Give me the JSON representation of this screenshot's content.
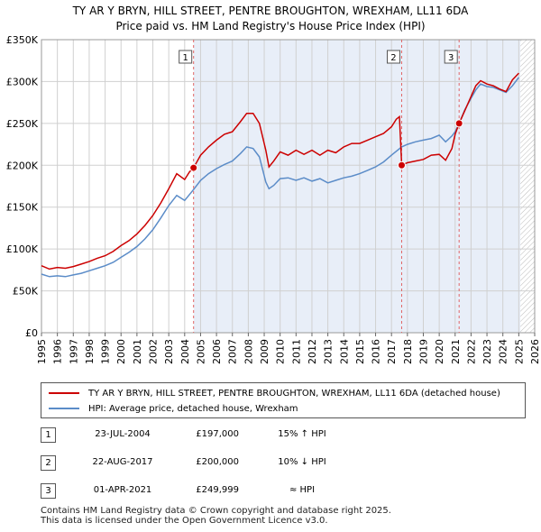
{
  "chart_data": {
    "type": "line",
    "title": "TY AR Y BRYN, HILL STREET, PENTRE BROUGHTON, WREXHAM, LL11 6DA",
    "subtitle": "Price paid vs. HM Land Registry's House Price Index (HPI)",
    "xlim": [
      1995,
      2026
    ],
    "ylim": [
      0,
      350000
    ],
    "xticks": [
      1995,
      1996,
      1997,
      1998,
      1999,
      2000,
      2001,
      2002,
      2003,
      2004,
      2005,
      2006,
      2007,
      2008,
      2009,
      2010,
      2011,
      2012,
      2013,
      2014,
      2015,
      2016,
      2017,
      2018,
      2019,
      2020,
      2021,
      2022,
      2023,
      2024,
      2025,
      2026
    ],
    "yticks": [
      {
        "value": 0,
        "label": "£0"
      },
      {
        "value": 50000,
        "label": "£50K"
      },
      {
        "value": 100000,
        "label": "£100K"
      },
      {
        "value": 150000,
        "label": "£150K"
      },
      {
        "value": 200000,
        "label": "£200K"
      },
      {
        "value": 250000,
        "label": "£250K"
      },
      {
        "value": 300000,
        "label": "£300K"
      },
      {
        "value": 350000,
        "label": "£350K"
      }
    ],
    "shaded_region": [
      2004.56,
      2025.1
    ],
    "hatched_region": [
      2025.1,
      2026
    ],
    "series": [
      {
        "name": "TY AR Y BRYN, HILL STREET, PENTRE BROUGHTON, WREXHAM, LL11 6DA (detached house)",
        "color": "#cc0000",
        "x": [
          1995.0,
          1995.5,
          1996.0,
          1996.5,
          1997.0,
          1997.5,
          1998.0,
          1998.5,
          1999.0,
          1999.5,
          2000.0,
          2000.5,
          2001.0,
          2001.5,
          2002.0,
          2002.5,
          2003.0,
          2003.5,
          2004.0,
          2004.3,
          2004.56,
          2005.0,
          2005.5,
          2006.0,
          2006.5,
          2007.0,
          2007.5,
          2007.9,
          2008.3,
          2008.7,
          2009.1,
          2009.3,
          2009.6,
          2010.0,
          2010.5,
          2011.0,
          2011.5,
          2012.0,
          2012.5,
          2013.0,
          2013.5,
          2014.0,
          2014.5,
          2015.0,
          2015.5,
          2016.0,
          2016.5,
          2017.0,
          2017.3,
          2017.5,
          2017.64,
          2018.0,
          2018.5,
          2019.0,
          2019.5,
          2020.0,
          2020.4,
          2020.8,
          2021.0,
          2021.25,
          2021.6,
          2022.0,
          2022.3,
          2022.6,
          2023.0,
          2023.4,
          2023.8,
          2024.2,
          2024.6,
          2025.0
        ],
        "y": [
          80000,
          76000,
          78000,
          77000,
          79000,
          82000,
          85000,
          89000,
          92000,
          97000,
          104000,
          110000,
          118000,
          128000,
          140000,
          155000,
          172000,
          190000,
          183000,
          192000,
          197000,
          212000,
          222000,
          230000,
          237000,
          240000,
          252000,
          262000,
          262000,
          250000,
          218000,
          198000,
          205000,
          216000,
          212000,
          218000,
          213000,
          218000,
          212000,
          218000,
          215000,
          222000,
          226000,
          226000,
          230000,
          234000,
          238000,
          246000,
          255000,
          258000,
          200000,
          203000,
          205000,
          207000,
          212000,
          213000,
          206000,
          220000,
          237000,
          249999,
          265000,
          282000,
          295000,
          301000,
          297000,
          295000,
          291000,
          288000,
          302000,
          310000
        ]
      },
      {
        "name": "HPI: Average price, detached house, Wrexham",
        "color": "#5b8cc8",
        "x": [
          1995.0,
          1995.5,
          1996.0,
          1996.5,
          1997.0,
          1997.5,
          1998.0,
          1998.5,
          1999.0,
          1999.5,
          2000.0,
          2000.5,
          2001.0,
          2001.5,
          2002.0,
          2002.5,
          2003.0,
          2003.5,
          2004.0,
          2004.56,
          2005.0,
          2005.5,
          2006.0,
          2006.5,
          2007.0,
          2007.5,
          2007.9,
          2008.3,
          2008.7,
          2009.1,
          2009.3,
          2009.6,
          2010.0,
          2010.5,
          2011.0,
          2011.5,
          2012.0,
          2012.5,
          2013.0,
          2013.5,
          2014.0,
          2014.5,
          2015.0,
          2015.5,
          2016.0,
          2016.5,
          2017.0,
          2017.64,
          2018.0,
          2018.5,
          2019.0,
          2019.5,
          2020.0,
          2020.4,
          2020.8,
          2021.0,
          2021.25,
          2021.6,
          2022.0,
          2022.3,
          2022.6,
          2023.0,
          2023.4,
          2023.8,
          2024.2,
          2024.6,
          2025.0
        ],
        "y": [
          70000,
          67000,
          68000,
          67000,
          69000,
          71000,
          74000,
          77000,
          80000,
          84000,
          90000,
          96000,
          103000,
          112000,
          123000,
          137000,
          152000,
          164000,
          158000,
          171000,
          182000,
          190000,
          196000,
          201000,
          205000,
          214000,
          222000,
          220000,
          210000,
          180000,
          172000,
          176000,
          184000,
          185000,
          182000,
          185000,
          181000,
          184000,
          179000,
          182000,
          185000,
          187000,
          190000,
          194000,
          198000,
          204000,
          212000,
          222000,
          225000,
          228000,
          230000,
          232000,
          236000,
          228000,
          235000,
          240000,
          250000,
          266000,
          280000,
          290000,
          297000,
          294000,
          293000,
          290000,
          287000,
          295000,
          305000
        ]
      }
    ],
    "sales": [
      {
        "num": "1",
        "x": 2004.56,
        "value": 197000,
        "date": "23-JUL-2004",
        "price": "£197,000",
        "hpi": "15% ↑ HPI"
      },
      {
        "num": "2",
        "x": 2017.64,
        "value": 200000,
        "date": "22-AUG-2017",
        "price": "£200,000",
        "hpi": "10% ↓ HPI"
      },
      {
        "num": "3",
        "x": 2021.25,
        "value": 249999,
        "date": "01-APR-2021",
        "price": "£249,999",
        "hpi": "≈ HPI"
      }
    ]
  },
  "legend": {
    "series1": "TY AR Y BRYN, HILL STREET, PENTRE BROUGHTON, WREXHAM, LL11 6DA (detached house)",
    "series2": "HPI: Average price, detached house, Wrexham"
  },
  "footer": {
    "line1": "Contains HM Land Registry data © Crown copyright and database right 2025.",
    "line2": "This data is licensed under the Open Government Licence v3.0."
  }
}
